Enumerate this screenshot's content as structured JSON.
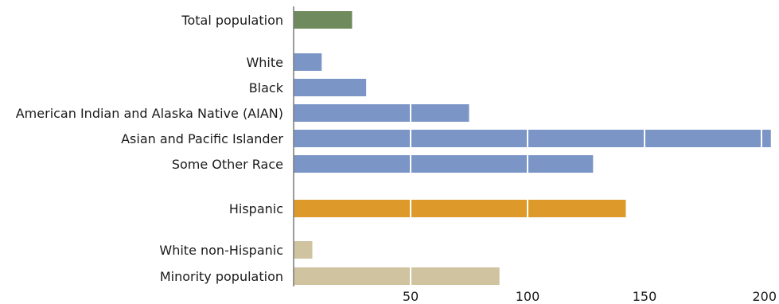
{
  "chart_data": {
    "type": "bar",
    "orientation": "horizontal",
    "title": "",
    "xlabel": "",
    "ylabel": "",
    "xlim": [
      0,
      200
    ],
    "xticks": [
      50,
      100,
      150,
      200
    ],
    "grid": "vertical white lines over bars",
    "legend": "none",
    "rows": [
      {
        "label": "Total population",
        "value": 25,
        "color": "#6f8a5c",
        "group": 0
      },
      {
        "label": "White",
        "value": 12,
        "color": "#7b96c6",
        "group": 1
      },
      {
        "label": "Black",
        "value": 31,
        "color": "#7b96c6",
        "group": 1
      },
      {
        "label": "American Indian and Alaska Native (AIAN)",
        "value": 75,
        "color": "#7b96c6",
        "group": 1
      },
      {
        "label": "Asian and Pacific Islander",
        "value": 204,
        "color": "#7b96c6",
        "group": 1
      },
      {
        "label": "Some Other Race",
        "value": 128,
        "color": "#7b96c6",
        "group": 1
      },
      {
        "label": "Hispanic",
        "value": 142,
        "color": "#dd9a2a",
        "group": 2
      },
      {
        "label": "White non-Hispanic",
        "value": 8,
        "color": "#cfc3a0",
        "group": 3
      },
      {
        "label": "Minority population",
        "value": 88,
        "color": "#cfc3a0",
        "group": 3
      }
    ]
  }
}
